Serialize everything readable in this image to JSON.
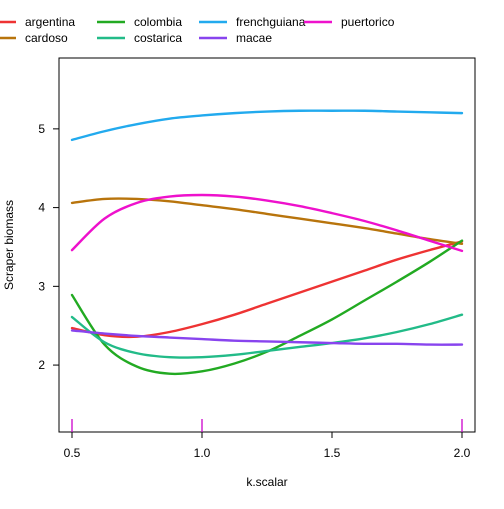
{
  "chart_data": {
    "type": "line",
    "xlabel": "k.scalar",
    "ylabel": "Scraper biomass",
    "xlim": [
      0.45,
      2.05
    ],
    "ylim": [
      1.15,
      5.9
    ],
    "x_ticks": [
      0.5,
      1.0,
      1.5,
      2.0
    ],
    "x_tick_labels": [
      "0.5",
      "1.0",
      "1.5",
      "2.0"
    ],
    "y_ticks": [
      2,
      3,
      4,
      5
    ],
    "y_tick_labels": [
      "2",
      "3",
      "4",
      "5"
    ],
    "rug_x": [
      0.5,
      1.0,
      2.0
    ],
    "rug_color": "#cc00cc",
    "legend_position": "top",
    "x": [
      0.5,
      0.625,
      0.75,
      0.875,
      1.0,
      1.125,
      1.25,
      1.375,
      1.5,
      1.625,
      1.75,
      1.875,
      2.0
    ],
    "series": [
      {
        "name": "argentina",
        "color": "#ee3333",
        "values": [
          2.47,
          2.38,
          2.36,
          2.42,
          2.52,
          2.64,
          2.78,
          2.92,
          3.06,
          3.2,
          3.34,
          3.46,
          3.57
        ]
      },
      {
        "name": "cardoso",
        "color": "#b8740c",
        "values": [
          4.06,
          4.11,
          4.11,
          4.08,
          4.03,
          3.98,
          3.92,
          3.86,
          3.8,
          3.74,
          3.67,
          3.6,
          3.54
        ]
      },
      {
        "name": "colombia",
        "color": "#22aa22",
        "values": [
          2.89,
          2.26,
          1.98,
          1.89,
          1.92,
          2.02,
          2.17,
          2.37,
          2.58,
          2.82,
          3.06,
          3.31,
          3.58
        ]
      },
      {
        "name": "costarica",
        "color": "#22bb88",
        "values": [
          2.61,
          2.29,
          2.15,
          2.1,
          2.1,
          2.13,
          2.18,
          2.23,
          2.28,
          2.34,
          2.42,
          2.52,
          2.64
        ]
      },
      {
        "name": "frenchguiana",
        "color": "#22aaee",
        "values": [
          4.86,
          4.97,
          5.06,
          5.13,
          5.17,
          5.2,
          5.22,
          5.23,
          5.23,
          5.23,
          5.22,
          5.21,
          5.2
        ]
      },
      {
        "name": "macae",
        "color": "#8844ee",
        "values": [
          2.44,
          2.4,
          2.37,
          2.35,
          2.33,
          2.31,
          2.3,
          2.29,
          2.28,
          2.27,
          2.27,
          2.26,
          2.26
        ]
      },
      {
        "name": "puertorico",
        "color": "#ee11cc",
        "values": [
          3.46,
          3.86,
          4.06,
          4.14,
          4.16,
          4.14,
          4.09,
          4.02,
          3.93,
          3.83,
          3.71,
          3.58,
          3.45
        ]
      }
    ]
  }
}
